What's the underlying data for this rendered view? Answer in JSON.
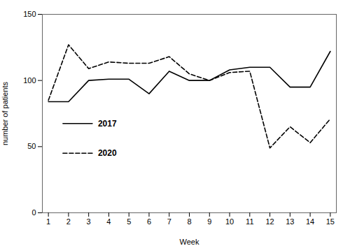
{
  "chart_data": {
    "type": "line",
    "x": [
      1,
      2,
      3,
      4,
      5,
      6,
      7,
      8,
      9,
      10,
      11,
      12,
      13,
      14,
      15
    ],
    "series": [
      {
        "name": "2017",
        "color": "#000000",
        "line_style": "solid",
        "values": [
          84,
          84,
          100,
          101,
          101,
          90,
          107,
          100,
          100,
          108,
          110,
          110,
          95,
          95,
          122
        ]
      },
      {
        "name": "2020",
        "color": "#000000",
        "line_style": "dashed",
        "values": [
          85,
          127,
          109,
          114,
          113,
          113,
          118,
          105,
          100,
          106,
          107,
          49,
          65,
          53,
          71
        ]
      }
    ],
    "xlabel": "Week",
    "ylabel": "number of patients",
    "xlim": [
      0.7,
      15.3
    ],
    "xticks": [
      1,
      2,
      3,
      4,
      5,
      6,
      7,
      8,
      9,
      10,
      11,
      12,
      13,
      14,
      15
    ],
    "ylim": [
      0,
      150
    ],
    "yticks": [
      0,
      50,
      100,
      150
    ],
    "legend": "left"
  }
}
